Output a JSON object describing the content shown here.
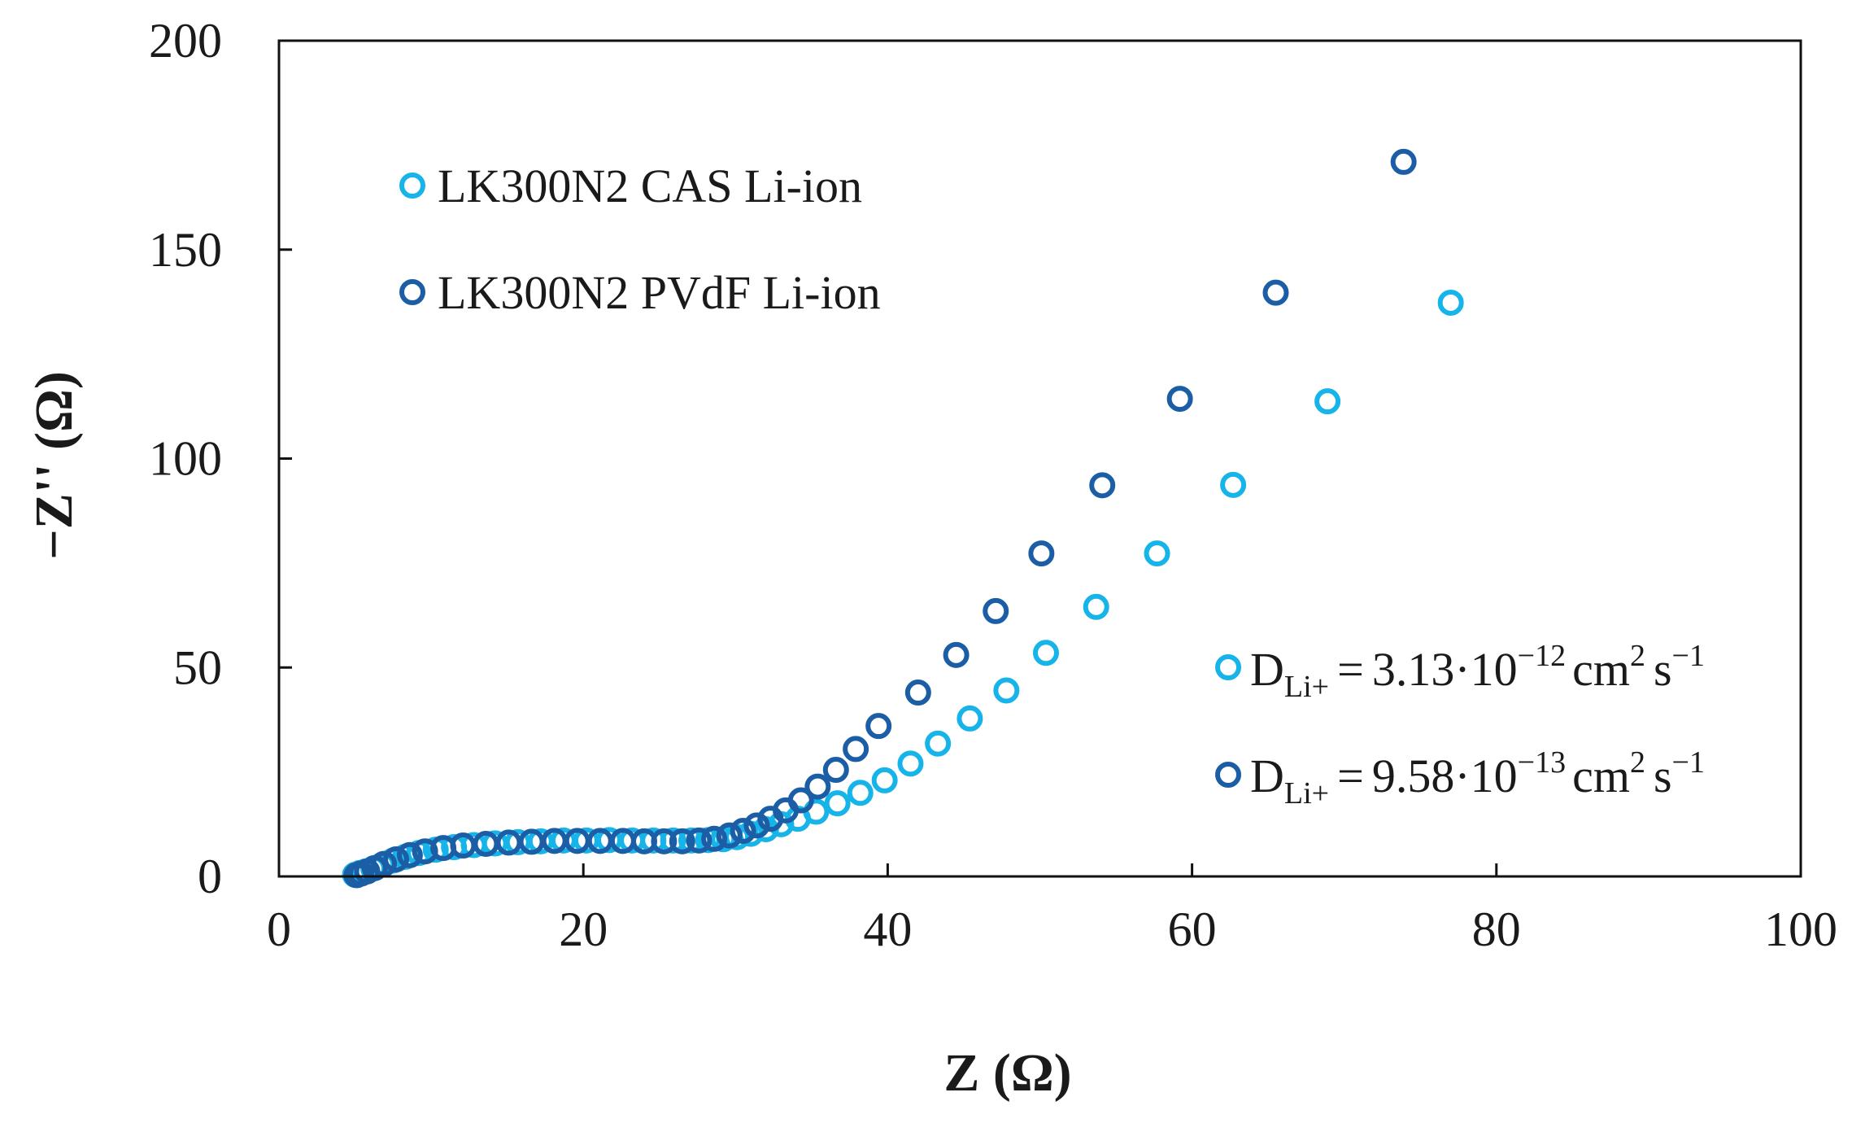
{
  "chart_data": {
    "type": "scatter",
    "xlabel": "Z (Ω)",
    "ylabel": "−Z'' (Ω)",
    "xlim": [
      0,
      100
    ],
    "ylim": [
      0,
      200
    ],
    "x_ticks": [
      "0",
      "20",
      "40",
      "60",
      "80",
      "100"
    ],
    "y_ticks": [
      "0",
      "50",
      "100",
      "150",
      "200"
    ],
    "grid": false,
    "legend_position": "top-left",
    "series": [
      {
        "name": "LK300N2 CAS Li-ion",
        "color": "#16b4e8",
        "marker": "open-circle",
        "points": [
          [
            5.0,
            0.4
          ],
          [
            5.3,
            0.8
          ],
          [
            5.7,
            1.2
          ],
          [
            6.2,
            1.9
          ],
          [
            6.8,
            2.8
          ],
          [
            7.5,
            3.8
          ],
          [
            8.3,
            4.7
          ],
          [
            9.2,
            5.6
          ],
          [
            10.3,
            6.4
          ],
          [
            11.5,
            7.0
          ],
          [
            12.8,
            7.5
          ],
          [
            14.2,
            7.9
          ],
          [
            15.7,
            8.2
          ],
          [
            17.2,
            8.4
          ],
          [
            18.7,
            8.6
          ],
          [
            20.2,
            8.6
          ],
          [
            21.7,
            8.7
          ],
          [
            23.2,
            8.6
          ],
          [
            24.6,
            8.6
          ],
          [
            25.9,
            8.6
          ],
          [
            27.1,
            8.6
          ],
          [
            28.2,
            8.7
          ],
          [
            29.2,
            8.9
          ],
          [
            30.1,
            9.4
          ],
          [
            31.0,
            10.2
          ],
          [
            32.0,
            11.3
          ],
          [
            33.0,
            12.5
          ],
          [
            34.1,
            13.8
          ],
          [
            35.3,
            15.5
          ],
          [
            36.7,
            17.5
          ],
          [
            38.2,
            20.0
          ],
          [
            39.8,
            23.0
          ],
          [
            41.5,
            27.0
          ],
          [
            43.3,
            31.8
          ],
          [
            45.4,
            37.8
          ],
          [
            47.8,
            44.5
          ],
          [
            50.4,
            53.5
          ],
          [
            53.7,
            64.5
          ],
          [
            57.7,
            77.3
          ],
          [
            62.7,
            93.7
          ],
          [
            68.9,
            113.7
          ],
          [
            77.0,
            137.3
          ]
        ]
      },
      {
        "name": "LK300N2 PVdF Li-ion",
        "color": "#1c5ea6",
        "marker": "open-circle",
        "points": [
          [
            5.1,
            0.3
          ],
          [
            5.4,
            0.7
          ],
          [
            5.8,
            1.2
          ],
          [
            6.3,
            2.0
          ],
          [
            6.9,
            3.0
          ],
          [
            7.7,
            4.1
          ],
          [
            8.6,
            5.1
          ],
          [
            9.6,
            6.0
          ],
          [
            10.8,
            6.8
          ],
          [
            12.1,
            7.4
          ],
          [
            13.6,
            7.8
          ],
          [
            15.1,
            8.1
          ],
          [
            16.6,
            8.3
          ],
          [
            18.1,
            8.5
          ],
          [
            19.6,
            8.5
          ],
          [
            21.1,
            8.5
          ],
          [
            22.6,
            8.5
          ],
          [
            24.0,
            8.4
          ],
          [
            25.3,
            8.4
          ],
          [
            26.5,
            8.4
          ],
          [
            27.6,
            8.6
          ],
          [
            28.6,
            9.0
          ],
          [
            29.6,
            9.8
          ],
          [
            30.5,
            10.9
          ],
          [
            31.4,
            12.2
          ],
          [
            32.3,
            13.8
          ],
          [
            33.3,
            15.8
          ],
          [
            34.3,
            18.2
          ],
          [
            35.4,
            21.5
          ],
          [
            36.6,
            25.5
          ],
          [
            37.9,
            30.5
          ],
          [
            39.4,
            36.0
          ],
          [
            42.0,
            44.0
          ],
          [
            44.5,
            53.0
          ],
          [
            47.1,
            63.5
          ],
          [
            50.1,
            77.3
          ],
          [
            54.1,
            93.6
          ],
          [
            59.2,
            114.3
          ],
          [
            65.5,
            139.7
          ],
          [
            73.9,
            171.0
          ]
        ]
      }
    ],
    "annotations": [
      {
        "marker_series": 0,
        "symbol": "D",
        "subscript": "Li+",
        "equals": "=",
        "value": "3.13·10",
        "exponent": "−12",
        "unit": "cm",
        "unit_exp": "2",
        "unit2": "s",
        "unit2_exp": "−1"
      },
      {
        "marker_series": 1,
        "symbol": "D",
        "subscript": "Li+",
        "equals": "=",
        "value": "9.58·10",
        "exponent": "−13",
        "unit": "cm",
        "unit_exp": "2",
        "unit2": "s",
        "unit2_exp": "−1"
      }
    ]
  }
}
